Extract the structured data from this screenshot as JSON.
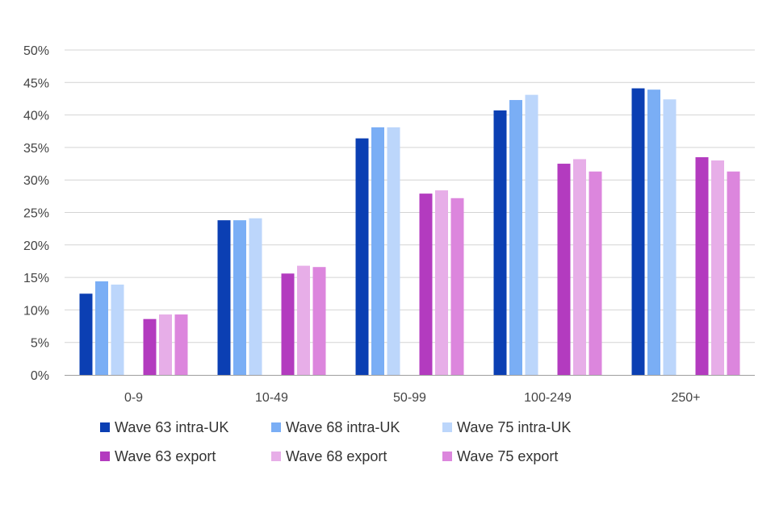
{
  "chart_data": {
    "type": "bar",
    "title": "",
    "xlabel": "",
    "ylabel": "",
    "ylim": [
      0,
      50
    ],
    "yticks": [
      0,
      5,
      10,
      15,
      20,
      25,
      30,
      35,
      40,
      45,
      50
    ],
    "ytick_labels": [
      "0%",
      "5%",
      "10%",
      "15%",
      "20%",
      "25%",
      "30%",
      "35%",
      "40%",
      "45%",
      "50%"
    ],
    "grid": true,
    "legend_position": "bottom",
    "categories": [
      "0-9",
      "10-49",
      "50-99",
      "100-249",
      "250+"
    ],
    "series": [
      {
        "name": "Wave 63 intra-UK",
        "color": "#0b3fb3",
        "values": [
          12.5,
          23.8,
          36.4,
          40.7,
          44.1
        ]
      },
      {
        "name": "Wave 68 intra-UK",
        "color": "#7aaef5",
        "values": [
          14.4,
          23.8,
          38.1,
          42.3,
          43.9
        ]
      },
      {
        "name": "Wave 75 intra-UK",
        "color": "#bcd6fb",
        "values": [
          13.9,
          24.1,
          38.1,
          43.1,
          42.4
        ]
      },
      {
        "name": "Wave 63 export",
        "color": "#b33bbf",
        "values": [
          8.6,
          15.6,
          27.9,
          32.5,
          33.5
        ]
      },
      {
        "name": "Wave 68 export",
        "color": "#e7aee8",
        "values": [
          9.3,
          16.8,
          28.4,
          33.2,
          33.0
        ]
      },
      {
        "name": "Wave 75 export",
        "color": "#dc86dd",
        "values": [
          9.3,
          16.6,
          27.2,
          31.3,
          31.3
        ]
      }
    ]
  }
}
